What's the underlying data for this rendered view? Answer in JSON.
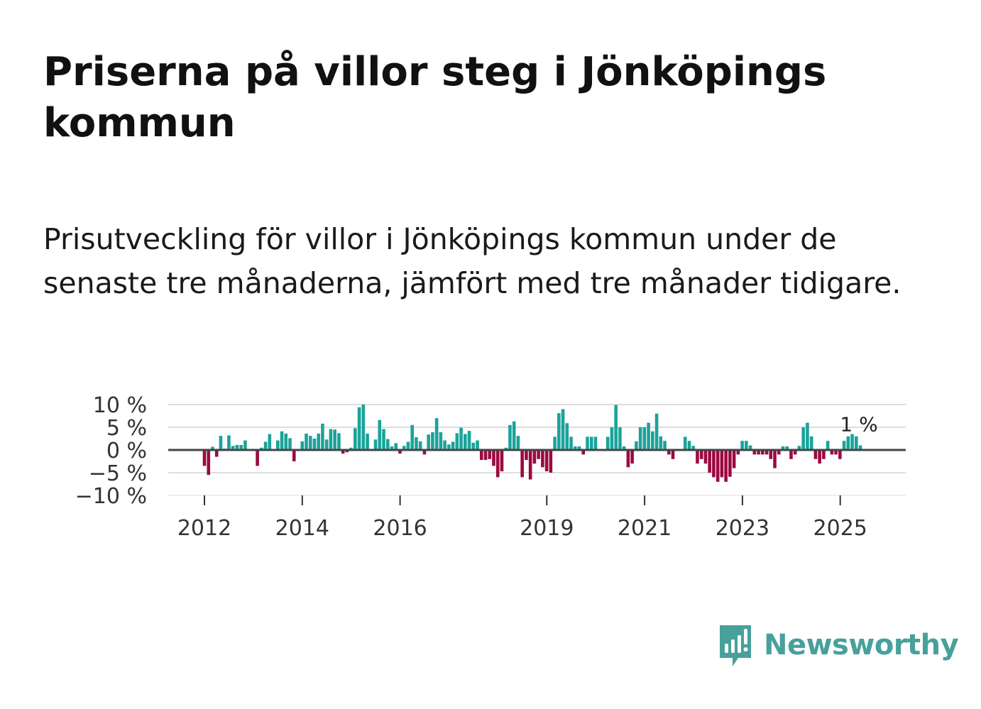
{
  "title": "Priserna på villor steg i Jönköpings kommun",
  "subtitle": "Prisutveckling för villor i Jönköpings kommun under de senaste tre månaderna, jämfört med tre månader tidigare.",
  "brand": {
    "name": "Newsworthy",
    "icon": "newsworthy-logo-icon"
  },
  "colors": {
    "positive": "#1aa39a",
    "negative": "#9b0a40",
    "grid": "#dddddd",
    "zero": "#444444",
    "brand": "#48a09b"
  },
  "chart_data": {
    "type": "bar",
    "title": "Priserna på villor steg i Jönköpings kommun",
    "xlabel": "",
    "ylabel": "",
    "ylim": [
      -10,
      10
    ],
    "yticks": [
      10,
      5,
      0,
      -5,
      -10
    ],
    "ytick_labels": [
      "10 %",
      "5 %",
      "0 %",
      "−5 %",
      "−10 %"
    ],
    "x_start": 2012.0,
    "x_step_years": 0.0833,
    "xticks": [
      2012,
      2014,
      2016,
      2019,
      2021,
      2023,
      2025
    ],
    "xtick_labels": [
      "2012",
      "2014",
      "2016",
      "2019",
      "2021",
      "2023",
      "2025"
    ],
    "annotation": {
      "label": "1 %",
      "target": "last"
    },
    "values": [
      -3.5,
      -5.5,
      0.7,
      -1.5,
      3.1,
      0.3,
      3.2,
      0.9,
      1.1,
      1.1,
      2.1,
      null,
      null,
      -3.5,
      0.5,
      1.8,
      3.5,
      null,
      2.1,
      4.1,
      3.6,
      2.6,
      -2.5,
      null,
      1.9,
      3.6,
      3.1,
      2.5,
      3.6,
      5.8,
      2.3,
      4.6,
      4.5,
      3.7,
      -0.8,
      -0.5,
      0.5,
      4.8,
      9.4,
      10.0,
      3.6,
      null,
      2.3,
      6.6,
      4.6,
      2.4,
      0.8,
      1.5,
      -0.8,
      0.9,
      1.8,
      5.5,
      2.8,
      1.9,
      -1.0,
      3.4,
      3.9,
      7.0,
      3.9,
      2.1,
      1.2,
      1.8,
      3.7,
      4.9,
      3.5,
      4.2,
      1.6,
      2.1,
      -2.2,
      -2.2,
      -2.0,
      -3.5,
      -6.0,
      -4.7,
      0.5,
      5.5,
      6.3,
      3.1,
      -6.0,
      -2.2,
      -6.5,
      -3.0,
      -2.0,
      -3.8,
      -4.7,
      -5.0,
      2.9,
      8.1,
      9.0,
      5.9,
      2.9,
      0.8,
      0.8,
      -1.0,
      2.9,
      2.9,
      2.9,
      null,
      null,
      2.9,
      5.0,
      9.9,
      5.0,
      0.8,
      -3.8,
      -3.0,
      1.9,
      5.0,
      5.0,
      6.0,
      4.1,
      8.0,
      3.0,
      2.0,
      -1.0,
      -2.0,
      null,
      null,
      2.9,
      2.0,
      0.9,
      -3.0,
      -2.0,
      -3.0,
      -5.0,
      -6.0,
      -7.0,
      -6.0,
      -7.0,
      -5.9,
      -4.0,
      -1.0,
      2.0,
      2.0,
      1.0,
      -1.0,
      -1.0,
      -1.0,
      -1.0,
      -2.0,
      -4.0,
      -1.0,
      0.8,
      0.8,
      -2.0,
      -1.0,
      0.9,
      5.0,
      6.0,
      3.0,
      -2.0,
      -3.0,
      -2.0,
      2.0,
      -1.0,
      -1.0,
      -2.0,
      2.0,
      3.0,
      3.5,
      3.0,
      1.0
    ]
  }
}
